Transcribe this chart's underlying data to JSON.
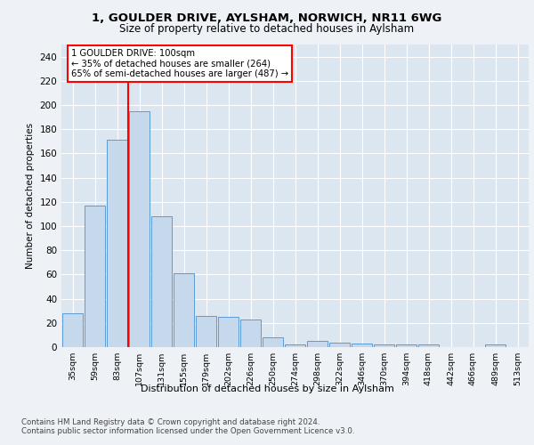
{
  "title1": "1, GOULDER DRIVE, AYLSHAM, NORWICH, NR11 6WG",
  "title2": "Size of property relative to detached houses in Aylsham",
  "xlabel": "Distribution of detached houses by size in Aylsham",
  "ylabel": "Number of detached properties",
  "categories": [
    "35sqm",
    "59sqm",
    "83sqm",
    "107sqm",
    "131sqm",
    "155sqm",
    "179sqm",
    "202sqm",
    "226sqm",
    "250sqm",
    "274sqm",
    "298sqm",
    "322sqm",
    "346sqm",
    "370sqm",
    "394sqm",
    "418sqm",
    "442sqm",
    "466sqm",
    "489sqm",
    "513sqm"
  ],
  "values": [
    28,
    117,
    171,
    195,
    108,
    61,
    26,
    25,
    23,
    8,
    2,
    5,
    4,
    3,
    2,
    2,
    2,
    0,
    0,
    2,
    0
  ],
  "bar_color": "#c5d8ec",
  "bar_edge_color": "#5b9bd5",
  "annotation_line1": "1 GOULDER DRIVE: 100sqm",
  "annotation_line2": "← 35% of detached houses are smaller (264)",
  "annotation_line3": "65% of semi-detached houses are larger (487) →",
  "annotation_box_color": "white",
  "annotation_box_edge": "red",
  "vline_color": "red",
  "vline_pos": 2.5,
  "ylim": [
    0,
    250
  ],
  "yticks": [
    0,
    20,
    40,
    60,
    80,
    100,
    120,
    140,
    160,
    180,
    200,
    220,
    240
  ],
  "footer_text": "Contains HM Land Registry data © Crown copyright and database right 2024.\nContains public sector information licensed under the Open Government Licence v3.0.",
  "bg_color": "#eef2f7",
  "plot_bg_color": "#dce6f1"
}
